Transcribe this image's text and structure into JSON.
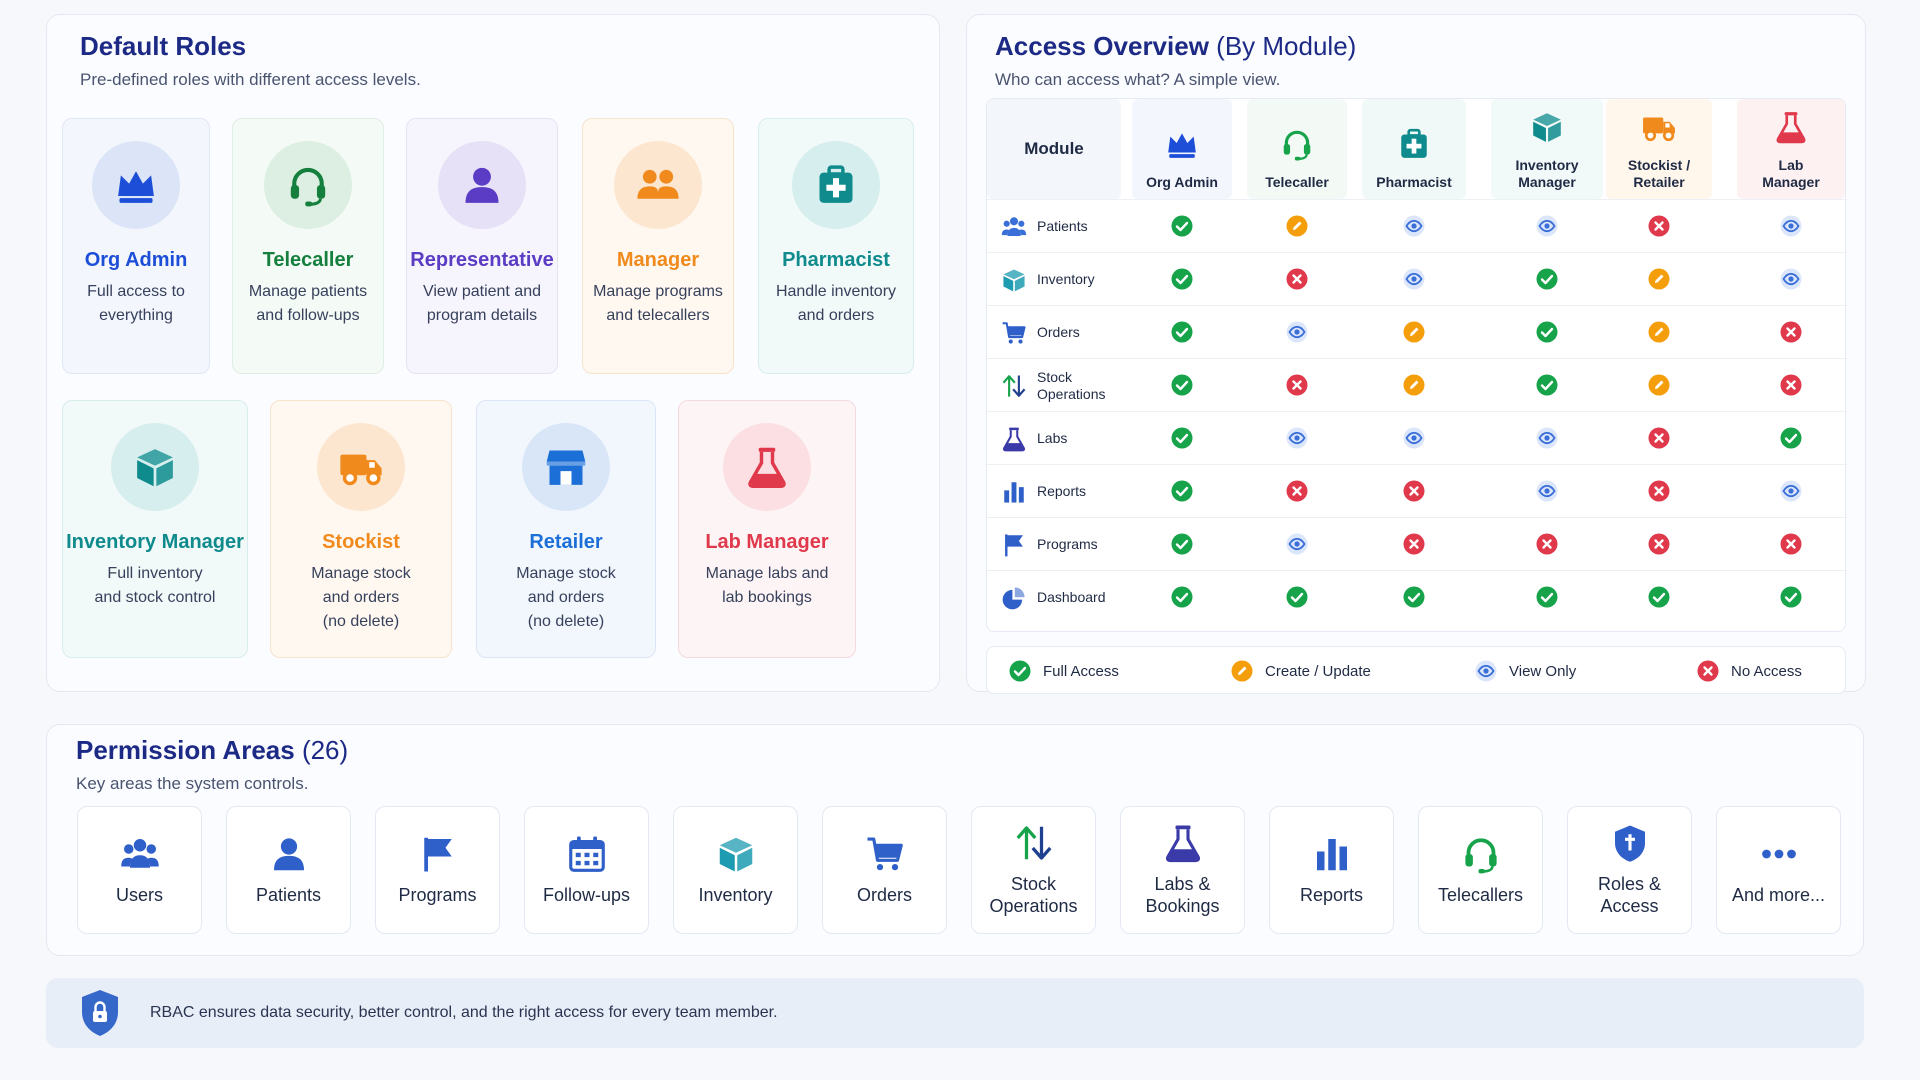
{
  "roles_panel": {
    "title": "Default Roles",
    "subtitle": "Pre-defined roles with different access levels.",
    "roles": [
      {
        "name": "Org Admin",
        "desc": "Full access to\neverything",
        "icon": "crown-icon",
        "color": "#1d4ed8"
      },
      {
        "name": "Telecaller",
        "desc": "Manage patients\nand follow-ups",
        "icon": "headset-icon",
        "color": "#15803d"
      },
      {
        "name": "Representative",
        "desc": "View patient and\nprogram details",
        "icon": "person-icon",
        "color": "#5b3cc4"
      },
      {
        "name": "Manager",
        "desc": "Manage programs\nand telecallers",
        "icon": "group-icon",
        "color": "#f08a1c"
      },
      {
        "name": "Pharmacist",
        "desc": "Handle inventory\nand orders",
        "icon": "medical-kit-icon",
        "color": "#0f8b8d"
      },
      {
        "name": "Inventory Manager",
        "desc": "Full inventory\nand stock control",
        "icon": "box-icon",
        "color": "#0f8b8d"
      },
      {
        "name": "Stockist",
        "desc": "Manage stock\nand orders\n(no delete)",
        "icon": "truck-icon",
        "color": "#f08a1c"
      },
      {
        "name": "Retailer",
        "desc": "Manage stock\nand orders\n(no delete)",
        "icon": "store-icon",
        "color": "#1d6fd8"
      },
      {
        "name": "Lab Manager",
        "desc": "Manage labs and\nlab bookings",
        "icon": "flask-icon",
        "color": "#e0394b"
      }
    ]
  },
  "access_panel": {
    "title": "Access Overview",
    "title_suffix": "(By Module)",
    "subtitle": "Who can access what? A simple view.",
    "module_header": "Module",
    "columns": [
      {
        "label": "Org Admin",
        "icon": "crown-icon"
      },
      {
        "label": "Telecaller",
        "icon": "headset-icon"
      },
      {
        "label": "Pharmacist",
        "icon": "medical-kit-icon"
      },
      {
        "label": "Inventory\nManager",
        "icon": "box-icon"
      },
      {
        "label": "Stockist /\nRetailer",
        "icon": "truck-icon"
      },
      {
        "label": "Lab\nManager",
        "icon": "flask-icon"
      }
    ],
    "rows": [
      {
        "module": "Patients",
        "icon": "users-icon",
        "access": [
          "full",
          "edit",
          "view",
          "view",
          "none",
          "view"
        ]
      },
      {
        "module": "Inventory",
        "icon": "box-icon",
        "access": [
          "full",
          "none",
          "view",
          "full",
          "edit",
          "view"
        ]
      },
      {
        "module": "Orders",
        "icon": "cart-icon",
        "access": [
          "full",
          "view",
          "edit",
          "full",
          "edit",
          "none"
        ]
      },
      {
        "module": "Stock\nOperations",
        "icon": "transfer-arrows-icon",
        "access": [
          "full",
          "none",
          "edit",
          "full",
          "edit",
          "none"
        ]
      },
      {
        "module": "Labs",
        "icon": "flask-icon",
        "access": [
          "full",
          "view",
          "view",
          "view",
          "none",
          "full"
        ]
      },
      {
        "module": "Reports",
        "icon": "bar-chart-icon",
        "access": [
          "full",
          "none",
          "none",
          "view",
          "none",
          "view"
        ]
      },
      {
        "module": "Programs",
        "icon": "flag-icon",
        "access": [
          "full",
          "view",
          "none",
          "none",
          "none",
          "none"
        ]
      },
      {
        "module": "Dashboard",
        "icon": "pie-chart-icon",
        "access": [
          "full",
          "full",
          "full",
          "full",
          "full",
          "full"
        ]
      }
    ],
    "legend": [
      {
        "key": "full",
        "label": "Full Access",
        "color": "#16a34a"
      },
      {
        "key": "edit",
        "label": "Create / Update",
        "color": "#f59e0b"
      },
      {
        "key": "view",
        "label": "View Only",
        "color": "#3b6fd8"
      },
      {
        "key": "none",
        "label": "No Access",
        "color": "#e0394b"
      }
    ]
  },
  "areas_panel": {
    "title": "Permission Areas",
    "count": "(26)",
    "subtitle": "Key areas the system controls.",
    "areas": [
      {
        "label": "Users",
        "icon": "users-icon"
      },
      {
        "label": "Patients",
        "icon": "person-icon"
      },
      {
        "label": "Programs",
        "icon": "flag-icon"
      },
      {
        "label": "Follow-ups",
        "icon": "calendar-icon"
      },
      {
        "label": "Inventory",
        "icon": "box-icon"
      },
      {
        "label": "Orders",
        "icon": "cart-icon"
      },
      {
        "label": "Stock\nOperations",
        "icon": "transfer-arrows-icon"
      },
      {
        "label": "Labs &\nBookings",
        "icon": "flask-icon"
      },
      {
        "label": "Reports",
        "icon": "bar-chart-icon"
      },
      {
        "label": "Telecallers",
        "icon": "headset-icon"
      },
      {
        "label": "Roles &\nAccess",
        "icon": "shield-icon"
      },
      {
        "label": "And more...",
        "icon": "more-dots-icon"
      }
    ]
  },
  "footer": {
    "text": "RBAC ensures data security, better control, and the right access for every team member.",
    "icon": "shield-lock-icon"
  }
}
